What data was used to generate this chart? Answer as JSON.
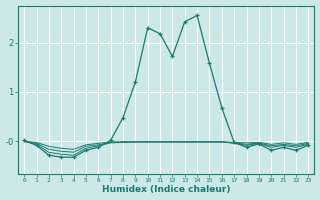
{
  "title": "",
  "xlabel": "Humidex (Indice chaleur)",
  "bg_color": "#cce8e8",
  "grid_color": "#ffffff",
  "line_color": "#1a7a6e",
  "xlim": [
    -0.5,
    23.5
  ],
  "ylim": [
    -0.65,
    2.75
  ],
  "xticks": [
    0,
    1,
    2,
    3,
    4,
    5,
    6,
    7,
    8,
    9,
    10,
    11,
    12,
    13,
    14,
    15,
    16,
    17,
    18,
    19,
    20,
    21,
    22,
    23
  ],
  "yticks": [
    0.0,
    1.0,
    2.0
  ],
  "ytick_labels": [
    "-0",
    "1",
    "2"
  ],
  "series": [
    {
      "x": [
        0,
        1,
        2,
        3,
        4,
        5,
        6,
        7,
        8,
        9,
        10,
        11,
        12,
        13,
        14,
        15,
        16,
        17,
        18,
        19,
        20,
        21,
        22,
        23
      ],
      "y": [
        0.02,
        -0.08,
        -0.28,
        -0.32,
        -0.32,
        -0.18,
        -0.12,
        0.02,
        0.48,
        1.2,
        2.3,
        2.18,
        1.72,
        2.42,
        2.55,
        1.58,
        0.68,
        -0.02,
        -0.12,
        -0.05,
        -0.18,
        -0.12,
        -0.18,
        -0.08
      ],
      "marker": "+",
      "lw": 0.9
    },
    {
      "x": [
        0,
        1,
        2,
        3,
        4,
        5,
        6,
        7,
        8,
        9,
        10,
        11,
        12,
        13,
        14,
        15,
        16,
        17,
        18,
        19,
        20,
        21,
        22,
        23
      ],
      "y": [
        0.0,
        -0.06,
        -0.22,
        -0.26,
        -0.28,
        -0.14,
        -0.09,
        -0.03,
        -0.02,
        -0.01,
        -0.01,
        -0.01,
        -0.01,
        -0.01,
        -0.01,
        -0.01,
        -0.01,
        -0.04,
        -0.08,
        -0.04,
        -0.12,
        -0.08,
        -0.12,
        -0.06
      ],
      "marker": null,
      "lw": 0.7
    },
    {
      "x": [
        0,
        1,
        2,
        3,
        4,
        5,
        6,
        7,
        8,
        9,
        10,
        11,
        12,
        13,
        14,
        15,
        16,
        17,
        18,
        19,
        20,
        21,
        22,
        23
      ],
      "y": [
        0.0,
        -0.04,
        -0.16,
        -0.2,
        -0.22,
        -0.1,
        -0.07,
        -0.02,
        -0.01,
        -0.01,
        -0.01,
        -0.01,
        -0.01,
        -0.01,
        -0.01,
        -0.01,
        -0.01,
        -0.03,
        -0.06,
        -0.03,
        -0.09,
        -0.06,
        -0.09,
        -0.04
      ],
      "marker": null,
      "lw": 0.7
    },
    {
      "x": [
        0,
        1,
        2,
        3,
        4,
        5,
        6,
        7,
        8,
        9,
        10,
        11,
        12,
        13,
        14,
        15,
        16,
        17,
        18,
        19,
        20,
        21,
        22,
        23
      ],
      "y": [
        0.0,
        -0.02,
        -0.1,
        -0.14,
        -0.16,
        -0.07,
        -0.04,
        -0.01,
        -0.01,
        -0.01,
        -0.01,
        -0.01,
        -0.01,
        -0.01,
        -0.01,
        -0.01,
        -0.01,
        -0.02,
        -0.03,
        -0.02,
        -0.06,
        -0.03,
        -0.06,
        -0.02
      ],
      "marker": null,
      "lw": 0.7
    }
  ]
}
